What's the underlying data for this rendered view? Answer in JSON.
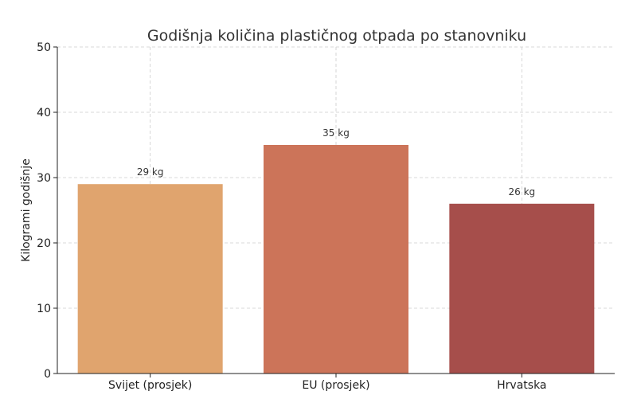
{
  "chart_data": {
    "type": "bar",
    "title": "Godišnja količina plastičnog otpada po stanovniku",
    "xlabel": "",
    "ylabel": "Kilogrami godišnje",
    "categories": [
      "Svijet (prosjek)",
      "EU (prosjek)",
      "Hrvatska"
    ],
    "values": [
      29,
      35,
      26
    ],
    "value_labels": [
      "29 kg",
      "35 kg",
      "26 kg"
    ],
    "colors": [
      "#e0a46e",
      "#cc7459",
      "#a64e4b"
    ],
    "ylim": [
      0,
      50
    ],
    "yticks": [
      0,
      10,
      20,
      30,
      40,
      50
    ],
    "grid": true,
    "legend": "none"
  }
}
